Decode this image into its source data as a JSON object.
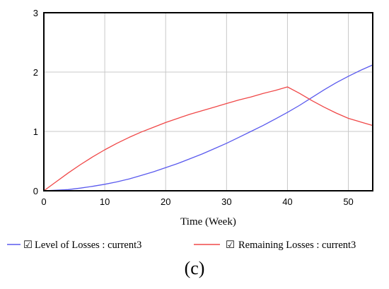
{
  "chart_data": {
    "type": "line",
    "xlabel": "Time (Week)",
    "ylabel": "",
    "xlim": [
      0,
      54
    ],
    "ylim": [
      0,
      3
    ],
    "x_ticks": [
      0,
      10,
      20,
      30,
      40,
      50
    ],
    "y_ticks": [
      0,
      1,
      2,
      3
    ],
    "grid": true,
    "legend_position": "bottom",
    "series": [
      {
        "name": "Level of Losses : current3",
        "color": "#5a5aee",
        "x": [
          0,
          2,
          4,
          6,
          8,
          10,
          12,
          14,
          16,
          18,
          20,
          22,
          24,
          26,
          28,
          30,
          32,
          34,
          36,
          38,
          40,
          42,
          44,
          46,
          48,
          50,
          52,
          54
        ],
        "y": [
          0,
          0.01,
          0.02,
          0.045,
          0.075,
          0.11,
          0.15,
          0.2,
          0.26,
          0.32,
          0.39,
          0.46,
          0.54,
          0.62,
          0.71,
          0.8,
          0.9,
          1.0,
          1.1,
          1.21,
          1.32,
          1.44,
          1.57,
          1.7,
          1.82,
          1.93,
          2.03,
          2.12
        ]
      },
      {
        "name": "Remaining Losses : current3",
        "color": "#f04848",
        "x": [
          0,
          2,
          4,
          6,
          8,
          10,
          12,
          14,
          16,
          18,
          20,
          22,
          24,
          26,
          28,
          30,
          32,
          34,
          36,
          38,
          40,
          42,
          44,
          46,
          48,
          50,
          52,
          54
        ],
        "y": [
          0,
          0.15,
          0.3,
          0.44,
          0.57,
          0.69,
          0.8,
          0.9,
          0.99,
          1.07,
          1.15,
          1.22,
          1.29,
          1.35,
          1.41,
          1.47,
          1.53,
          1.58,
          1.64,
          1.69,
          1.75,
          1.64,
          1.52,
          1.41,
          1.31,
          1.22,
          1.16,
          1.1
        ]
      }
    ]
  },
  "legend": {
    "check_mark": "☑",
    "items": [
      {
        "label": "Level of Losses : current3"
      },
      {
        "label": "Remaining Losses : current3"
      }
    ]
  },
  "caption": "(c)"
}
